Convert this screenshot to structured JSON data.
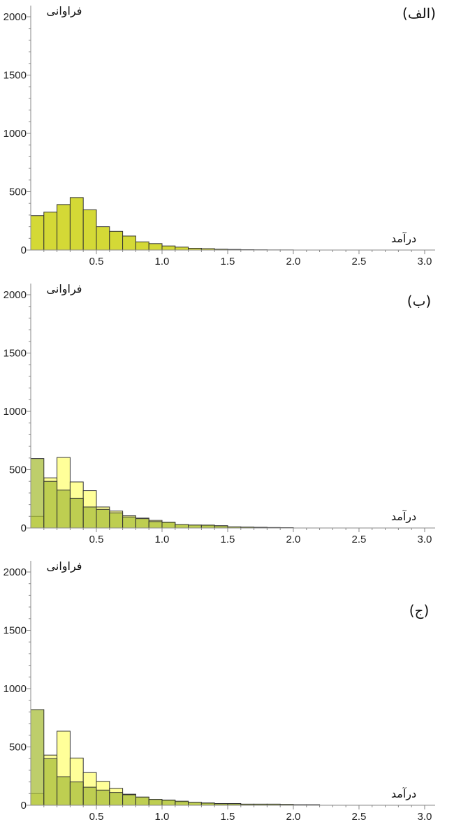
{
  "chart_data": [
    {
      "type": "bar",
      "panel_label": "(الف)",
      "xlabel": "درآمد",
      "ylabel": "فراوانی",
      "xlim": [
        0,
        3.08
      ],
      "ylim": [
        0,
        2100
      ],
      "x_ticks": [
        "0.5",
        "1.0",
        "1.5",
        "2.0",
        "2.5",
        "3.0"
      ],
      "y_ticks": [
        "0",
        "500",
        "1000",
        "1500",
        "2000"
      ],
      "bin_width": 0.1,
      "bin_start": 0.0,
      "series": [
        {
          "color": "#d4d936",
          "values": [
            295,
            325,
            390,
            450,
            345,
            200,
            160,
            120,
            70,
            55,
            35,
            25,
            15,
            12,
            7,
            5,
            3,
            2,
            1,
            1
          ]
        }
      ]
    },
    {
      "type": "bar",
      "panel_label": "(ب)",
      "xlabel": "درآمد",
      "ylabel": "فراوانی",
      "xlim": [
        0,
        3.08
      ],
      "ylim": [
        0,
        2100
      ],
      "x_ticks": [
        "0.5",
        "1.0",
        "1.5",
        "2.0",
        "2.5",
        "3.0"
      ],
      "y_ticks": [
        "0",
        "500",
        "1000",
        "1500",
        "2000"
      ],
      "bin_width": 0.1,
      "bin_start": 0.0,
      "series": [
        {
          "color": "#ffff99",
          "values": [
            100,
            430,
            605,
            395,
            320,
            180,
            145,
            105,
            85,
            65,
            45,
            30,
            25,
            20,
            12,
            8,
            6,
            5,
            3,
            2
          ]
        },
        {
          "color": "#a8bd3a",
          "values": [
            595,
            400,
            325,
            255,
            180,
            160,
            130,
            95,
            80,
            55,
            50,
            30,
            25,
            25,
            20,
            10,
            8,
            6,
            4,
            3
          ]
        }
      ]
    },
    {
      "type": "bar",
      "panel_label": "(ج)",
      "xlabel": "درآمد",
      "ylabel": "فراوانی",
      "xlim": [
        0,
        3.08
      ],
      "ylim": [
        0,
        2100
      ],
      "x_ticks": [
        "0.5",
        "1.0",
        "1.5",
        "2.0",
        "2.5",
        "3.0"
      ],
      "y_ticks": [
        "0",
        "500",
        "1000",
        "1500",
        "2000"
      ],
      "bin_width": 0.1,
      "bin_start": 0.0,
      "series": [
        {
          "color": "#ffff99",
          "values": [
            100,
            430,
            635,
            405,
            280,
            205,
            145,
            95,
            70,
            50,
            40,
            30,
            25,
            15,
            10,
            8,
            6,
            5,
            4,
            3,
            2,
            2
          ]
        },
        {
          "color": "#a8bd3a",
          "values": [
            820,
            400,
            245,
            200,
            155,
            130,
            110,
            90,
            70,
            50,
            45,
            35,
            25,
            20,
            15,
            15,
            10,
            10,
            10,
            8,
            5,
            5
          ]
        }
      ]
    }
  ]
}
